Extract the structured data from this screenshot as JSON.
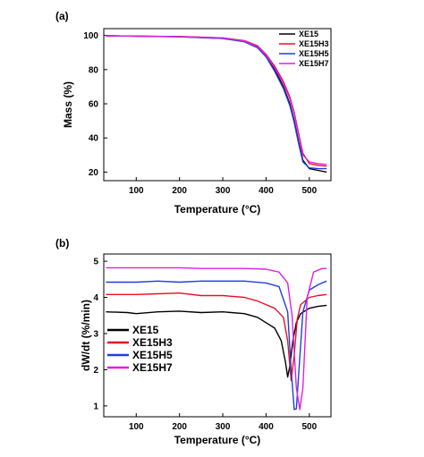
{
  "colors": {
    "XE15": "#000000",
    "XE15H3": "#e8102a",
    "XE15H5": "#1f3fd8",
    "XE15H7": "#e020e0"
  },
  "chart_data": [
    {
      "type": "line",
      "panel_label": "(a)",
      "xlabel": "Temperature (°C)",
      "ylabel": "Mass (%)",
      "xlim": [
        25,
        550
      ],
      "ylim": [
        15,
        104
      ],
      "x_ticks": [
        100,
        200,
        300,
        400,
        500
      ],
      "y_ticks": [
        20,
        40,
        60,
        80,
        100
      ],
      "legend_position": "top-right",
      "series": [
        {
          "name": "XE15",
          "x": [
            30,
            100,
            200,
            300,
            350,
            380,
            400,
            420,
            440,
            455,
            465,
            475,
            485,
            500,
            520,
            540
          ],
          "y": [
            99.8,
            99.6,
            99.3,
            98.3,
            96.5,
            93,
            88,
            80,
            70,
            60,
            50,
            38,
            27,
            22,
            21,
            20
          ]
        },
        {
          "name": "XE15H3",
          "x": [
            30,
            100,
            200,
            300,
            350,
            380,
            400,
            420,
            440,
            455,
            465,
            475,
            485,
            500,
            520,
            540
          ],
          "y": [
            99.8,
            99.6,
            99.4,
            98.6,
            97,
            94,
            89,
            82,
            73,
            64,
            55,
            43,
            31,
            25,
            24,
            23.5
          ]
        },
        {
          "name": "XE15H5",
          "x": [
            30,
            100,
            200,
            300,
            350,
            380,
            400,
            420,
            440,
            455,
            465,
            475,
            485,
            500,
            520,
            540
          ],
          "y": [
            99.8,
            99.6,
            99.2,
            98.2,
            96.3,
            92.8,
            87.5,
            79,
            69,
            59,
            49,
            37,
            26,
            22.5,
            22,
            22
          ]
        },
        {
          "name": "XE15H7",
          "x": [
            30,
            100,
            200,
            300,
            350,
            380,
            400,
            420,
            440,
            455,
            465,
            475,
            485,
            500,
            520,
            540
          ],
          "y": [
            99.8,
            99.6,
            99.4,
            98.5,
            96.8,
            93.5,
            88.5,
            81,
            72,
            63,
            54,
            42,
            30,
            26,
            25,
            24.5
          ]
        }
      ]
    },
    {
      "type": "line",
      "panel_label": "(b)",
      "xlabel": "Temperature (°C)",
      "ylabel": "dW/dt (%/min)",
      "xlim": [
        25,
        550
      ],
      "ylim": [
        0.7,
        5.2
      ],
      "x_ticks": [
        100,
        200,
        300,
        400,
        500
      ],
      "y_ticks": [
        1,
        2,
        3,
        4,
        5
      ],
      "legend_position": "bottom-left",
      "series": [
        {
          "name": "XE15",
          "x": [
            30,
            80,
            100,
            150,
            200,
            250,
            300,
            350,
            380,
            400,
            420,
            435,
            445,
            450,
            455,
            462,
            470,
            480,
            500,
            520,
            540
          ],
          "y": [
            3.6,
            3.58,
            3.55,
            3.6,
            3.62,
            3.58,
            3.6,
            3.55,
            3.45,
            3.3,
            3.15,
            2.8,
            2.2,
            1.8,
            2.1,
            2.8,
            3.3,
            3.55,
            3.7,
            3.75,
            3.78
          ]
        },
        {
          "name": "XE15H3",
          "x": [
            30,
            100,
            150,
            200,
            250,
            300,
            350,
            380,
            400,
            420,
            440,
            450,
            458,
            465,
            472,
            480,
            500,
            520,
            540
          ],
          "y": [
            4.08,
            4.08,
            4.1,
            4.12,
            4.05,
            4.05,
            4.0,
            3.9,
            3.8,
            3.7,
            3.45,
            2.8,
            1.7,
            2.4,
            3.4,
            3.8,
            4.0,
            4.05,
            4.08
          ]
        },
        {
          "name": "XE15H5",
          "x": [
            30,
            100,
            150,
            200,
            250,
            300,
            350,
            400,
            430,
            450,
            458,
            465,
            470,
            475,
            485,
            500,
            520,
            540
          ],
          "y": [
            4.42,
            4.42,
            4.45,
            4.42,
            4.45,
            4.45,
            4.45,
            4.4,
            4.3,
            3.6,
            2.0,
            0.9,
            0.92,
            1.8,
            3.6,
            4.2,
            4.35,
            4.45
          ]
        },
        {
          "name": "XE15H7",
          "x": [
            30,
            100,
            150,
            200,
            250,
            300,
            350,
            400,
            430,
            450,
            460,
            470,
            478,
            485,
            495,
            510,
            530,
            540
          ],
          "y": [
            4.82,
            4.82,
            4.82,
            4.82,
            4.8,
            4.8,
            4.8,
            4.78,
            4.7,
            4.4,
            3.5,
            1.5,
            0.9,
            1.5,
            4.0,
            4.7,
            4.8,
            4.8
          ]
        }
      ]
    }
  ]
}
